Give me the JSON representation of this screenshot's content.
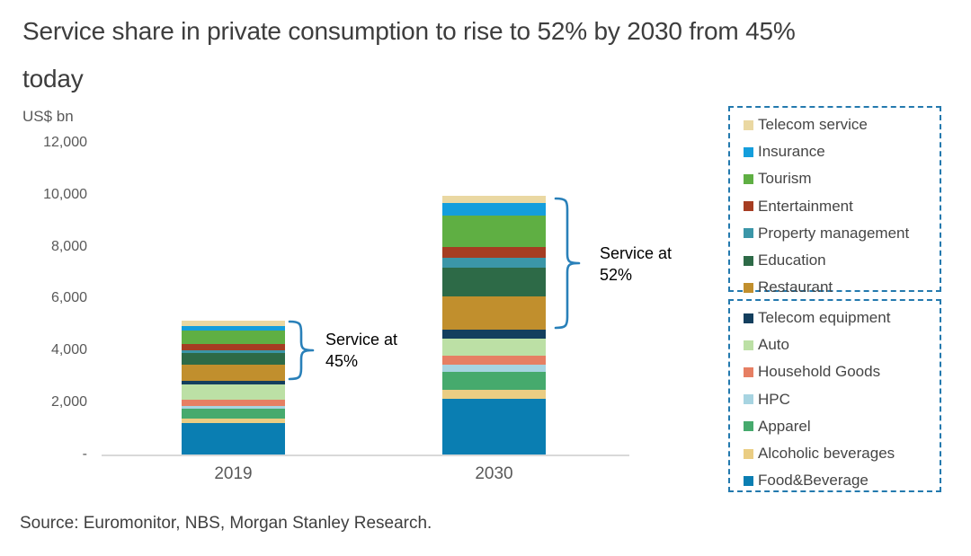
{
  "title": {
    "line1": "Service share in private consumption to rise to 52% by 2030 from 45%",
    "line2": "today"
  },
  "source_line": "Source: Euromonitor, NBS, Morgan Stanley Research.",
  "colors": {
    "legend_border": "#2379ae",
    "brace": "#2980b9",
    "axis_line": "#d9d9d9",
    "axis_text": "#595959"
  },
  "chart_data": {
    "type": "bar",
    "stacked": true,
    "title": "Service share in private consumption to rise to 52% by 2030 from 45% today",
    "ylabel": "US$ bn",
    "ylim": [
      0,
      12000
    ],
    "y_ticks": [
      "12,000",
      "10,000",
      "8,000",
      "6,000",
      "4,000",
      "2,000",
      "-"
    ],
    "grid": false,
    "categories": [
      "2019",
      "2030"
    ],
    "series_order": "bottom-to-top",
    "series": [
      {
        "name": "Food&Beverage",
        "color": "#0a7eb2",
        "values": [
          1220,
          2150
        ]
      },
      {
        "name": "Alcoholic beverages",
        "color": "#eacd83",
        "values": [
          160,
          340
        ]
      },
      {
        "name": "Apparel",
        "color": "#46aa6d",
        "values": [
          380,
          690
        ]
      },
      {
        "name": "HPC",
        "color": "#a7d4e1",
        "values": [
          115,
          280
        ]
      },
      {
        "name": "Household Goods",
        "color": "#e67f63",
        "values": [
          230,
          350
        ]
      },
      {
        "name": "Auto",
        "color": "#bce0a5",
        "values": [
          580,
          660
        ]
      },
      {
        "name": "Telecom equipment",
        "color": "#133f5e",
        "values": [
          150,
          330
        ]
      },
      {
        "name": "Restaurant",
        "color": "#c18f2d",
        "values": [
          620,
          1300
        ]
      },
      {
        "name": "Education",
        "color": "#2d6a47",
        "values": [
          440,
          1100
        ]
      },
      {
        "name": "Property management",
        "color": "#3b96a8",
        "values": [
          115,
          380
        ]
      },
      {
        "name": "Entertainment",
        "color": "#a63d22",
        "values": [
          230,
          420
        ]
      },
      {
        "name": "Tourism",
        "color": "#5faf43",
        "values": [
          550,
          1200
        ]
      },
      {
        "name": "Insurance",
        "color": "#149edc",
        "values": [
          160,
          500
        ]
      },
      {
        "name": "Telecom service",
        "color": "#ead8a2",
        "values": [
          210,
          250
        ]
      }
    ],
    "totals": {
      "2019": 5160,
      "2030": 9950
    },
    "service_share": {
      "2019": "45%",
      "2030": "52%"
    },
    "annotations": [
      {
        "text": "Service at 45%",
        "category": "2019"
      },
      {
        "text": "Service at 52%",
        "category": "2030"
      }
    ],
    "legend_position": "right"
  },
  "legend": {
    "service_group": [
      {
        "label": "Telecom service",
        "color": "#ead8a2"
      },
      {
        "label": "Insurance",
        "color": "#149edc"
      },
      {
        "label": "Tourism",
        "color": "#5faf43"
      },
      {
        "label": "Entertainment",
        "color": "#a63d22"
      },
      {
        "label": "Property management",
        "color": "#3b96a8"
      },
      {
        "label": "Education",
        "color": "#2d6a47"
      },
      {
        "label": "Restaurant",
        "color": "#c18f2d"
      }
    ],
    "goods_group": [
      {
        "label": "Telecom equipment",
        "color": "#133f5e"
      },
      {
        "label": "Auto",
        "color": "#bce0a5"
      },
      {
        "label": "Household Goods",
        "color": "#e67f63"
      },
      {
        "label": "HPC",
        "color": "#a7d4e1"
      },
      {
        "label": "Apparel",
        "color": "#46aa6d"
      },
      {
        "label": "Alcoholic beverages",
        "color": "#eacd83"
      },
      {
        "label": "Food&Beverage",
        "color": "#0a7eb2"
      }
    ]
  }
}
